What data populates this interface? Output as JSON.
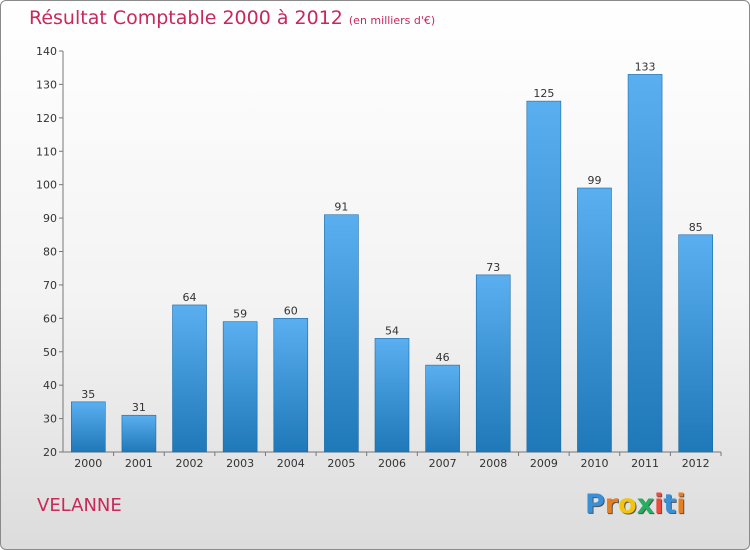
{
  "title": "Résultat Comptable 2000 à 2012",
  "subtitle": "(en milliers d'€)",
  "commune": "VELANNE",
  "logo": {
    "letters": [
      "P",
      "r",
      "o",
      "x",
      "i",
      "t",
      "i"
    ],
    "colors": [
      "#3a8fd6",
      "#e67e22",
      "#f1c40f",
      "#27ae60",
      "#e74c3c",
      "#3a8fd6",
      "#e67e22"
    ]
  },
  "colors": {
    "bar_top": "#5aaff0",
    "bar_bottom": "#1f78b8",
    "title": "#c8285a"
  },
  "chart_data": {
    "type": "bar",
    "categories": [
      "2000",
      "2001",
      "2002",
      "2003",
      "2004",
      "2005",
      "2006",
      "2007",
      "2008",
      "2009",
      "2010",
      "2011",
      "2012"
    ],
    "values": [
      35,
      31,
      64,
      59,
      60,
      91,
      54,
      46,
      73,
      125,
      99,
      133,
      85
    ],
    "ylim": [
      20,
      140
    ],
    "yticks": [
      20,
      30,
      40,
      50,
      60,
      70,
      80,
      90,
      100,
      110,
      120,
      130,
      140
    ],
    "grid": false
  }
}
